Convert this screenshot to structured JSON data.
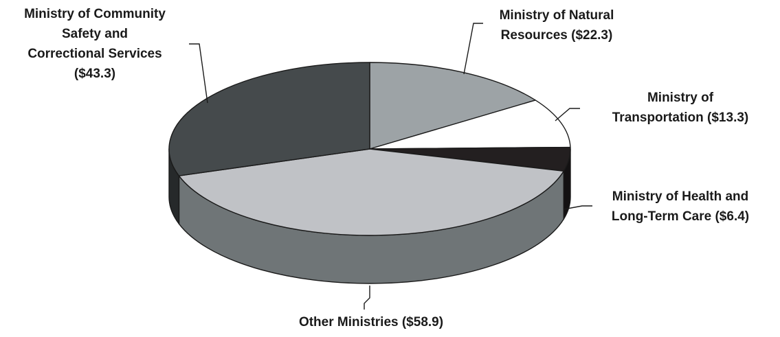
{
  "chart_data": {
    "type": "pie",
    "style": "3d",
    "slices": [
      {
        "name": "Ministry of Natural Resources",
        "value": 22.3,
        "color": "#9da3a6",
        "label_lines": [
          "Ministry of Natural",
          "Resources ($22.3)"
        ]
      },
      {
        "name": "Ministry of Transportation",
        "value": 13.3,
        "color": "#ffffff",
        "label_lines": [
          "Ministry of",
          "Transportation ($13.3)"
        ]
      },
      {
        "name": "Ministry of Health and Long-Term Care",
        "value": 6.4,
        "color": "#231f20",
        "label_lines": [
          "Ministry of Health and",
          "Long-Term Care ($6.4)"
        ]
      },
      {
        "name": "Other Ministries",
        "value": 58.9,
        "color": "#c0c2c6",
        "side_color": "#6f7577",
        "label_lines": [
          "Other Ministries ($58.9)"
        ]
      },
      {
        "name": "Ministry of Community Safety and Correctional Services",
        "value": 43.3,
        "color": "#454a4c",
        "label_lines": [
          "Ministry of Community",
          "Safety and",
          "Correctional Services",
          "($43.3)"
        ]
      }
    ]
  }
}
